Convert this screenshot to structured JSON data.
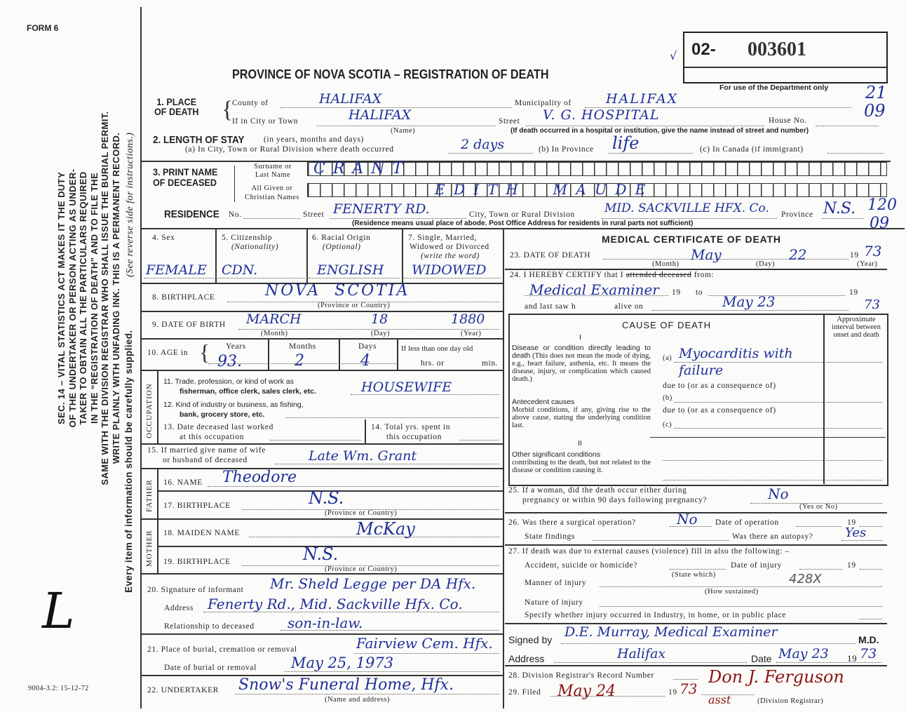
{
  "form_number": "FORM 6",
  "title": "PROVINCE OF NOVA SCOTIA – REGISTRATION OF DEATH",
  "registration": {
    "prefix": "02-",
    "number": "003601",
    "dept_note": "For use of the Department only",
    "check": "√"
  },
  "margin": {
    "act_text": [
      "SEC. 14 – VITAL STATISTICS ACT MAKES IT THE DUTY",
      "OF THE UNDERTAKER OR PERSON ACTING AS UNDER-",
      "TAKER TO OBTAIN ALL THE PARTICULARS REQUIRED",
      "IN THE “REGISTRATION OF DEATH” AND TO FILE THE",
      "SAME WITH THE DIVISION REGISTRAR WHO SHALL ISSUE THE BURIAL PERMIT.",
      "WRITE PLAINLY WITH UNFADING INK. THIS IS A PERMANENT RECORD."
    ],
    "every_item": "Every item of information should be carefully supplied.",
    "see_reverse": "(See reverse side for instructions.)",
    "form_code": "9004-3.2: 15-12-72",
    "initial": "L"
  },
  "place_of_death": {
    "label": "1. PLACE OF DEATH",
    "county_label": "County of",
    "county": "HALIFAX",
    "municipality_label": "Municipality of",
    "municipality": "HALIFAX",
    "city_label": "If in City or Town",
    "city": "HALIFAX",
    "name_note": "(Name)",
    "street_label": "Street",
    "street": "V. G. HOSPITAL",
    "house_label": "House No.",
    "hospital_note": "(If death occurred in a hospital or institution, give the name instead of street and number)",
    "code": "21",
    "code2": "09"
  },
  "length_of_stay": {
    "label": "2. LENGTH OF STAY",
    "sub": "(in years, months and days)",
    "a_label": "(a) In City, Town or Rural Division where death occurred",
    "a": "2 days",
    "b_label": "(b) In Province",
    "b": "life",
    "c_label": "(c) In Canada (if immigrant)"
  },
  "name": {
    "label": "3. PRINT NAME OF DECEASED",
    "surname_label": "Surname or Last Name",
    "surname": "C R A N T",
    "given_label": "All Given or Christian Names",
    "given": "E D I T H     M A U D E"
  },
  "residence": {
    "label": "RESIDENCE",
    "no_label": "No.",
    "street_label": "Street",
    "street": "FENERTY RD.",
    "city_label": "City, Town or Rural Division",
    "city": "MID. SACKVILLE HFX. Co.",
    "province_label": "Province",
    "province": "N.S.",
    "note": "(Residence means usual place of abode. Post Office Address for residents in rural parts not sufficient)",
    "code": "120",
    "code2": "09"
  },
  "personal": {
    "sex_label": "4. Sex",
    "sex": "FEMALE",
    "citizenship_label": "5. Citizenship",
    "citizenship_sub": "(Nationality)",
    "citizenship": "CDN.",
    "racial_label": "6. Racial Origin",
    "racial_sub": "(Optional)",
    "racial": "ENGLISH",
    "marital_label": "7. Single, Married,",
    "marital_label2": "Widowed or Divorced",
    "marital_sub": "(write the word)",
    "marital": "WIDOWED",
    "birthplace_label": "8. BIRTHPLACE",
    "birthplace": "NOVA  SCOTIA",
    "birthplace_note": "(Province or Country)",
    "dob_label": "9. DATE OF BIRTH",
    "dob_month": "MARCH",
    "dob_day": "18",
    "dob_year": "1880",
    "month_note": "(Month)",
    "day_note": "(Day)",
    "year_note": "(Year)",
    "age_label": "10. AGE in",
    "years_label": "Years",
    "years": "93.",
    "months_label": "Months",
    "months": "2",
    "days_label": "Days",
    "days": "4",
    "less_label": "If less than one day old",
    "hrs_label": "hrs. or",
    "min_label": "min."
  },
  "occupation": {
    "side": "OCCUPATION",
    "trade_label": "11. Trade, profession, or kind of work as",
    "trade_label2": "fisherman, office clerk, sales clerk, etc.",
    "trade": "HOUSEWIFE",
    "industry_label": "12. Kind of industry or business, as fishing,",
    "industry_label2": "bank, grocery store, etc.",
    "last_worked_label": "13. Date deceased last worked",
    "last_worked_label2": "at this occupation",
    "total_label": "14. Total yrs. spent in",
    "total_label2": "this occupation"
  },
  "spouse": {
    "label": "15. If married give name of wife",
    "label2": "or husband of deceased",
    "value": "Late Wm. Grant"
  },
  "father": {
    "side": "FATHER",
    "name_label": "16. NAME",
    "name": "Theodore",
    "birthplace_label": "17. BIRTHPLACE",
    "birthplace": "N.S.",
    "note": "(Province or Country)"
  },
  "mother": {
    "side": "MOTHER",
    "maiden_label": "18. MAIDEN NAME",
    "maiden": "McKay",
    "birthplace_label": "19. BIRTHPLACE",
    "birthplace": "N.S.",
    "note": "(Province or Country)"
  },
  "informant": {
    "signature_label": "20. Signature of informant",
    "signature": "Mr. Sheld Legge per DA Hfx.",
    "address_label": "Address",
    "address": "Fenerty Rd., Mid. Sackville Hfx. Co.",
    "relationship_label": "Relationship to deceased",
    "relationship": "son-in-law."
  },
  "burial": {
    "place_label": "21. Place of burial, cremation or removal",
    "place": "Fairview Cem. Hfx.",
    "date_label": "Date of burial or removal",
    "date": "May 25, 1973"
  },
  "undertaker": {
    "label": "22. UNDERTAKER",
    "value": "Snow's Funeral Home, Hfx.",
    "note": "(Name and address)"
  },
  "medical": {
    "title": "MEDICAL CERTIFICATE OF DEATH",
    "dod_label": "23. DATE OF DEATH",
    "dod_month": "May",
    "dod_day": "22",
    "dod_year_prefix": "19",
    "dod_year": "73",
    "month_note": "(Month)",
    "day_note": "(Day)",
    "year_note": "(Year)",
    "certify_label": "24. I HEREBY CERTIFY that I",
    "certify_struck": "attended deceased",
    "certify_from": "from:",
    "certify_value": "Medical Examiner",
    "nineteen": "19",
    "to": "to",
    "last_saw_label": "and last saw h",
    "alive_label": "alive on",
    "last_saw": "May 23",
    "last_saw_year": "73"
  },
  "cause": {
    "title": "CAUSE OF DEATH",
    "part1": "I",
    "part2": "II",
    "interval": "Approximate interval between onset and death",
    "direct_title": "Disease or condition directly leading to death",
    "direct_text": "(This does not mean the mode of dying, e.g., heart failure, asthenia, etc. It means the disease, injury, or complication which caused death.)",
    "a_label": "(a)",
    "a_value": "Myocarditis with failure",
    "due_to": "due to (or as a consequence of)",
    "b_label": "(b)",
    "c_label": "(c)",
    "antecedent_title": "Antecedent causes",
    "antecedent_text": "Morbid conditions, if any, giving rise to the above cause, stating the underlying condition last.",
    "other_title": "Other significant conditions",
    "other_text": "contributing to the death, but not related to the disease or condition causing it."
  },
  "q25": {
    "label": "25. If a woman, did the death occur either during",
    "label2": "pregnancy or within 90 days following pregnancy?",
    "value": "No",
    "note": "(Yes or No)"
  },
  "q26": {
    "label": "26. Was there a surgical operation?",
    "value": "No",
    "date_label": "Date of operation",
    "nineteen": "19",
    "findings_label": "State findings",
    "autopsy_label": "Was there an autopsy?",
    "autopsy": "Yes"
  },
  "q27": {
    "label": "27. If death was due to external causes (violence) fill in also the following: –",
    "accident_label": "Accident, suicide or homicide?",
    "state_which": "(State which)",
    "injury_date_label": "Date of injury",
    "nineteen": "19",
    "manner_label": "Manner of injury",
    "how": "(How sustained)",
    "stamp": "428X",
    "nature_label": "Nature of injury",
    "specify_label": "Specify whether injury occurred in Industry, in home, or in public place"
  },
  "signature": {
    "signed_label": "Signed by",
    "signed": "D.E. Murray, Medical Examiner",
    "md": "M.D.",
    "address_label": "Address",
    "address": "Halifax",
    "date_label": "Date",
    "date": "May 23",
    "year_prefix": "19",
    "year": "73"
  },
  "registrar": {
    "record_label": "28. Division Registrar's Record Number",
    "filed_label": "29. Filed",
    "filed": "May 24",
    "nineteen": "19",
    "filed_year": "73",
    "signature": "Don J. Ferguson",
    "asst": "asst",
    "registrar_note": "(Division Registrar)"
  },
  "colors": {
    "ink_blue": "#1f2f9a",
    "ink_red": "#8a1515",
    "paper": "#fbfbf9",
    "print": "#222222"
  }
}
